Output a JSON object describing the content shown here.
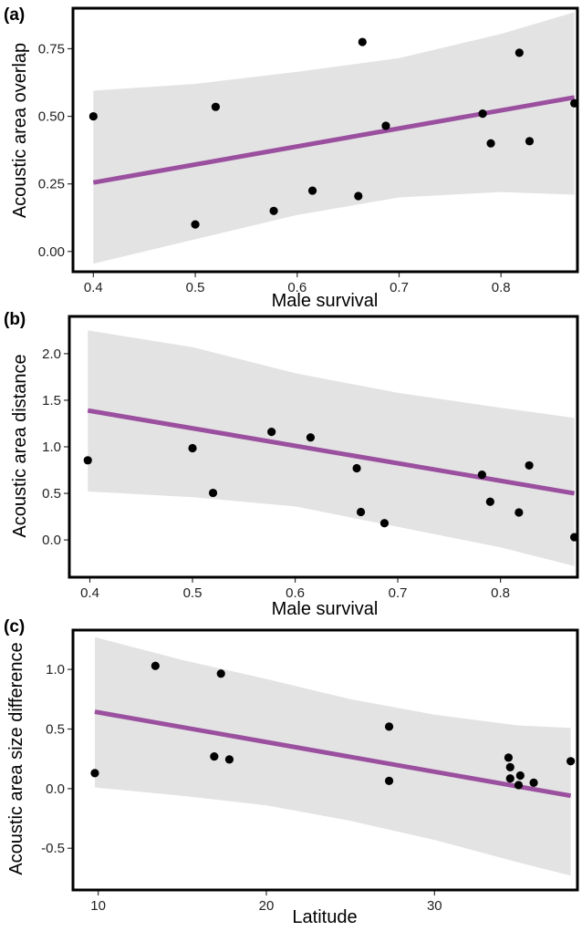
{
  "chart_data": [
    {
      "type": "scatter",
      "panel_label": "(a)",
      "title": "",
      "xlabel": "Male survival",
      "ylabel": "Acoustic area overlap",
      "xlim": [
        0.38,
        0.875
      ],
      "ylim": [
        -0.075,
        0.9
      ],
      "x_ticks": [
        0.4,
        0.5,
        0.6,
        0.7,
        0.8
      ],
      "x_tick_labels": [
        "0.4",
        "0.5",
        "0.6",
        "0.7",
        "0.8"
      ],
      "y_ticks": [
        0.0,
        0.25,
        0.5,
        0.75
      ],
      "y_tick_labels": [
        "0.00",
        "0.25",
        "0.50",
        "0.75"
      ],
      "points": [
        {
          "x": 0.4,
          "y": 0.5
        },
        {
          "x": 0.5,
          "y": 0.1
        },
        {
          "x": 0.52,
          "y": 0.535
        },
        {
          "x": 0.577,
          "y": 0.15
        },
        {
          "x": 0.615,
          "y": 0.225
        },
        {
          "x": 0.66,
          "y": 0.205
        },
        {
          "x": 0.664,
          "y": 0.775
        },
        {
          "x": 0.687,
          "y": 0.465
        },
        {
          "x": 0.782,
          "y": 0.51
        },
        {
          "x": 0.79,
          "y": 0.4
        },
        {
          "x": 0.818,
          "y": 0.735
        },
        {
          "x": 0.828,
          "y": 0.408
        },
        {
          "x": 0.872,
          "y": 0.548
        }
      ],
      "fit": {
        "x": [
          0.4,
          0.872
        ],
        "y": [
          0.255,
          0.57
        ]
      },
      "ribbon": {
        "x": [
          0.4,
          0.5,
          0.6,
          0.7,
          0.8,
          0.872
        ],
        "lower": [
          -0.045,
          0.045,
          0.135,
          0.2,
          0.22,
          0.21
        ],
        "upper": [
          0.595,
          0.62,
          0.665,
          0.715,
          0.805,
          0.885
        ]
      },
      "colors": {
        "fit": "#9b4f9f",
        "ribbon": "#e3e3e3",
        "points": "#000000"
      }
    },
    {
      "type": "scatter",
      "panel_label": "(b)",
      "title": "",
      "xlabel": "Male survival",
      "ylabel": "Acoustic area distance",
      "xlim": [
        0.38,
        0.875
      ],
      "ylim": [
        -0.4,
        2.4
      ],
      "x_ticks": [
        0.4,
        0.5,
        0.6,
        0.7,
        0.8
      ],
      "x_tick_labels": [
        "0.4",
        "0.5",
        "0.6",
        "0.7",
        "0.8"
      ],
      "y_ticks": [
        0.0,
        0.5,
        1.0,
        1.5,
        2.0
      ],
      "y_tick_labels": [
        "0.0",
        "0.5",
        "1.0",
        "1.5",
        "2.0"
      ],
      "points": [
        {
          "x": 0.398,
          "y": 0.855
        },
        {
          "x": 0.5,
          "y": 0.985
        },
        {
          "x": 0.52,
          "y": 0.505
        },
        {
          "x": 0.577,
          "y": 1.16
        },
        {
          "x": 0.615,
          "y": 1.1
        },
        {
          "x": 0.66,
          "y": 0.77
        },
        {
          "x": 0.664,
          "y": 0.3
        },
        {
          "x": 0.687,
          "y": 0.18
        },
        {
          "x": 0.782,
          "y": 0.7
        },
        {
          "x": 0.79,
          "y": 0.41
        },
        {
          "x": 0.818,
          "y": 0.295
        },
        {
          "x": 0.828,
          "y": 0.8
        },
        {
          "x": 0.872,
          "y": 0.03
        }
      ],
      "fit": {
        "x": [
          0.398,
          0.872
        ],
        "y": [
          1.39,
          0.5
        ]
      },
      "ribbon": {
        "x": [
          0.398,
          0.5,
          0.6,
          0.7,
          0.8,
          0.872
        ],
        "lower": [
          0.52,
          0.46,
          0.36,
          0.14,
          -0.08,
          -0.28
        ],
        "upper": [
          2.25,
          2.07,
          1.79,
          1.58,
          1.42,
          1.31
        ]
      },
      "colors": {
        "fit": "#9b4f9f",
        "ribbon": "#e3e3e3",
        "points": "#000000"
      }
    },
    {
      "type": "scatter",
      "panel_label": "(c)",
      "title": "",
      "xlabel": "Latitude",
      "ylabel": "Acoustic area size difference",
      "xlim": [
        8.5,
        38.5
      ],
      "ylim": [
        -0.85,
        1.33
      ],
      "x_ticks": [
        10,
        20,
        30
      ],
      "x_tick_labels": [
        "10",
        "20",
        "30"
      ],
      "y_ticks": [
        -0.5,
        0.0,
        0.5,
        1.0
      ],
      "y_tick_labels": [
        "-0.5",
        "0.0",
        "0.5",
        "1.0"
      ],
      "points": [
        {
          "x": 9.8,
          "y": 0.13
        },
        {
          "x": 13.4,
          "y": 1.03
        },
        {
          "x": 16.9,
          "y": 0.27
        },
        {
          "x": 17.3,
          "y": 0.965
        },
        {
          "x": 17.8,
          "y": 0.245
        },
        {
          "x": 27.3,
          "y": 0.52
        },
        {
          "x": 27.3,
          "y": 0.065
        },
        {
          "x": 34.4,
          "y": 0.26
        },
        {
          "x": 34.5,
          "y": 0.18
        },
        {
          "x": 34.5,
          "y": 0.085
        },
        {
          "x": 35.0,
          "y": 0.03
        },
        {
          "x": 35.1,
          "y": 0.11
        },
        {
          "x": 35.9,
          "y": 0.05
        },
        {
          "x": 38.1,
          "y": 0.23
        }
      ],
      "fit": {
        "x": [
          9.8,
          38.1
        ],
        "y": [
          0.645,
          -0.06
        ]
      },
      "ribbon": {
        "x": [
          9.8,
          15,
          20,
          25,
          30,
          35,
          38.1
        ],
        "lower": [
          0.01,
          -0.06,
          -0.14,
          -0.27,
          -0.43,
          -0.62,
          -0.73
        ],
        "upper": [
          1.27,
          1.08,
          0.92,
          0.75,
          0.62,
          0.53,
          0.51
        ]
      },
      "colors": {
        "fit": "#9b4f9f",
        "ribbon": "#e3e3e3",
        "points": "#000000"
      }
    }
  ]
}
